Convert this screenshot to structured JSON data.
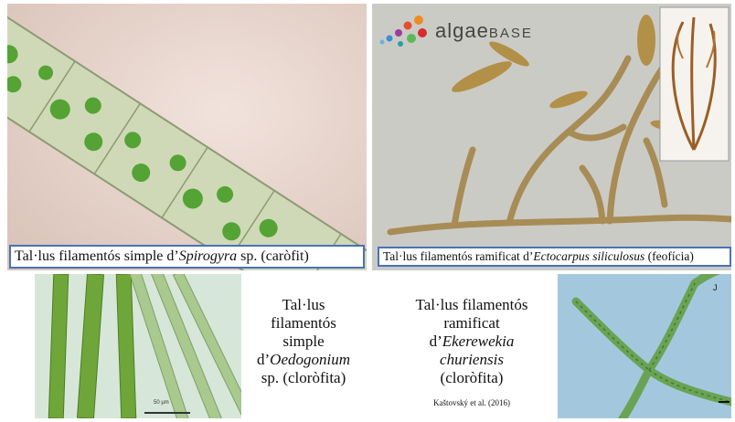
{
  "panels": {
    "spirogyra": {
      "caption_prefix": "Tal·lus filamentós simple d’",
      "caption_genus": "Spirogyra",
      "caption_suffix": " sp. (caròfit)"
    },
    "ectocarpus": {
      "caption_prefix": "Tal·lus filamentós ramificat d’",
      "caption_species": "Ectocarpus siliculosus",
      "caption_suffix": " (feofícia)",
      "logo": {
        "word_main": "algae",
        "word_small": "BASE"
      }
    },
    "oedogonium": {
      "line1": "Tal·lus",
      "line2": "filamentós",
      "line3": "simple",
      "line4_prefix": "d’",
      "line4_genus": "Oedogonium",
      "line5": "sp. (cloròfita)",
      "scale_label": "50 µm"
    },
    "ekerewekia": {
      "line1": "Tal·lus filamentós",
      "line2": "ramificat",
      "line3_prefix": "d’",
      "line3_genus": "Ekerewekia",
      "line4_species": "churiensis",
      "line5": "(cloròfita)",
      "credit": "Kaštovský et al. (2016)",
      "panel_letter": "J"
    }
  },
  "colors": {
    "caption_border": "#4a72b8",
    "spirogyra_bg": "#e8d6cf",
    "ectocarpus_bg": "#c9c9c4",
    "oedogonium_bg": "#cfe3d6",
    "ekerewekia_bg": "#9cc4dc"
  }
}
